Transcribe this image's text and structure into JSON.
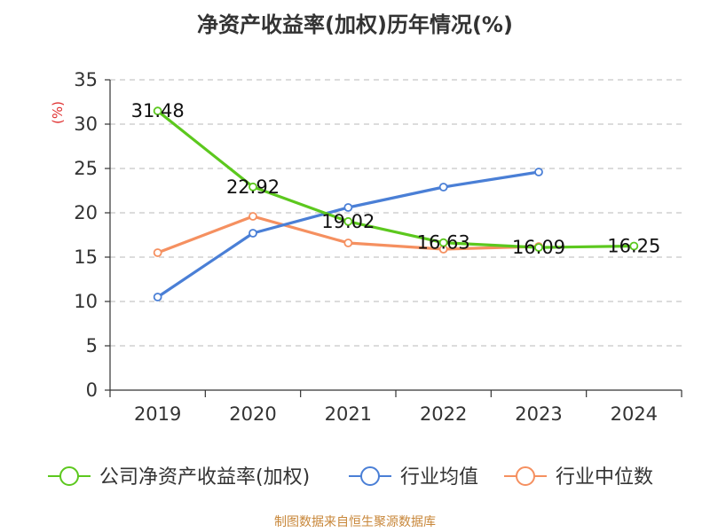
{
  "title": "净资产收益率(加权)历年情况(%)",
  "source": "制图数据来自恒生聚源数据库",
  "colors": {
    "company": "#5cc81e",
    "industry_avg": "#4a7fd6",
    "industry_median": "#f59060",
    "axis": "#333333",
    "grid": "#c8c8c8",
    "unit": "#e03030"
  },
  "chart_data": {
    "type": "line",
    "title": "净资产收益率(加权)历年情况(%)",
    "ylabel": "(%)",
    "xlabel": "",
    "categories": [
      "2019",
      "2020",
      "2021",
      "2022",
      "2023",
      "2024"
    ],
    "ylim": [
      0,
      35
    ],
    "yticks": [
      0,
      5,
      10,
      15,
      20,
      25,
      30,
      35
    ],
    "grid": true,
    "legend_position": "bottom",
    "series": [
      {
        "name": "公司净资产收益率(加权)",
        "color_key": "company",
        "values": [
          31.48,
          22.92,
          19.02,
          16.63,
          16.09,
          16.25
        ],
        "labels": [
          "31.48",
          "22.92",
          "19.02",
          "16.63",
          "16.09",
          "16.25"
        ]
      },
      {
        "name": "行业均值",
        "color_key": "industry_avg",
        "values": [
          10.5,
          17.7,
          20.6,
          22.9,
          24.6,
          null
        ]
      },
      {
        "name": "行业中位数",
        "color_key": "industry_median",
        "values": [
          15.5,
          19.6,
          16.6,
          15.9,
          16.2,
          null
        ]
      }
    ]
  }
}
